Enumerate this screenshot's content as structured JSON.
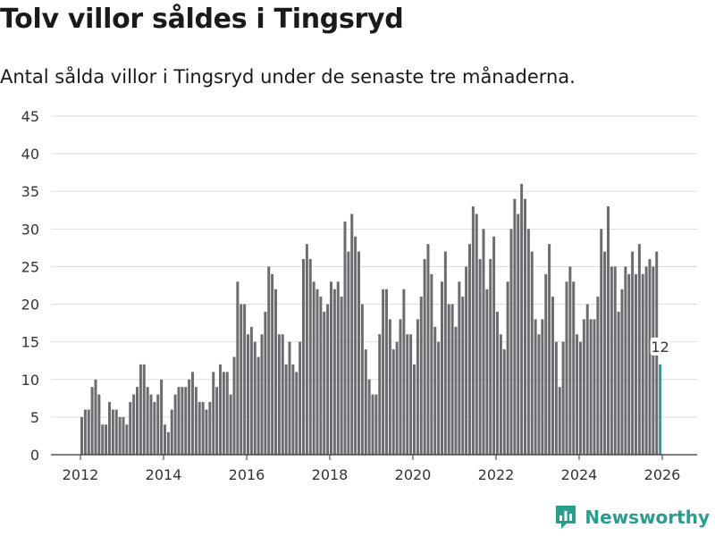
{
  "header": {
    "title": "Tolv villor såldes i Tingsryd",
    "subtitle": "Antal sålda villor i Tingsryd under de senaste tre månaderna."
  },
  "chart_data": {
    "type": "bar",
    "title": "Tolv villor såldes i Tingsryd",
    "subtitle": "Antal sålda villor i Tingsryd under de senaste tre månaderna.",
    "xlabel": "",
    "ylabel": "",
    "ylim": [
      0,
      45
    ],
    "yticks": [
      "0",
      "5",
      "10",
      "15",
      "20",
      "25",
      "30",
      "35",
      "40",
      "45"
    ],
    "xticks": [
      "2012",
      "2014",
      "2016",
      "2018",
      "2020",
      "2022",
      "2024",
      "2026"
    ],
    "x_start": "2012-01",
    "x_interval": "month",
    "grid": true,
    "series": [
      {
        "name": "Antal sålda villor",
        "color": "#6b6b70",
        "values": [
          5,
          6,
          6,
          9,
          10,
          8,
          4,
          4,
          7,
          6,
          6,
          5,
          5,
          4,
          7,
          8,
          9,
          12,
          12,
          9,
          8,
          7,
          8,
          10,
          4,
          3,
          6,
          8,
          9,
          9,
          9,
          10,
          11,
          9,
          7,
          7,
          6,
          7,
          11,
          9,
          12,
          11,
          11,
          8,
          13,
          23,
          20,
          20,
          16,
          17,
          15,
          13,
          16,
          19,
          25,
          24,
          22,
          16,
          16,
          12,
          15,
          12,
          11,
          15,
          26,
          28,
          26,
          23,
          22,
          21,
          19,
          20,
          23,
          22,
          23,
          21,
          31,
          27,
          32,
          29,
          27,
          20,
          14,
          10,
          8,
          8,
          16,
          22,
          22,
          18,
          14,
          15,
          18,
          22,
          16,
          16,
          12,
          18,
          21,
          26,
          28,
          24,
          17,
          15,
          23,
          27,
          20,
          20,
          17,
          23,
          21,
          25,
          28,
          33,
          32,
          26,
          30,
          22,
          26,
          29,
          19,
          16,
          14,
          23,
          30,
          34,
          32,
          36,
          34,
          30,
          27,
          18,
          16,
          18,
          24,
          28,
          21,
          15,
          9,
          15,
          23,
          25,
          23,
          16,
          15,
          18,
          20,
          18,
          18,
          21,
          30,
          27,
          33,
          25,
          25,
          19,
          22,
          25,
          24,
          27,
          24,
          28,
          24,
          25,
          26,
          25,
          27,
          12
        ]
      }
    ],
    "highlight": {
      "index": 167,
      "value": 12,
      "label": "12",
      "color": "#2a9d8f"
    }
  },
  "footer": {
    "brand": "Newsworthy",
    "brand_color": "#2a9d8f",
    "brand_icon": "newsworthy-logo-icon"
  }
}
